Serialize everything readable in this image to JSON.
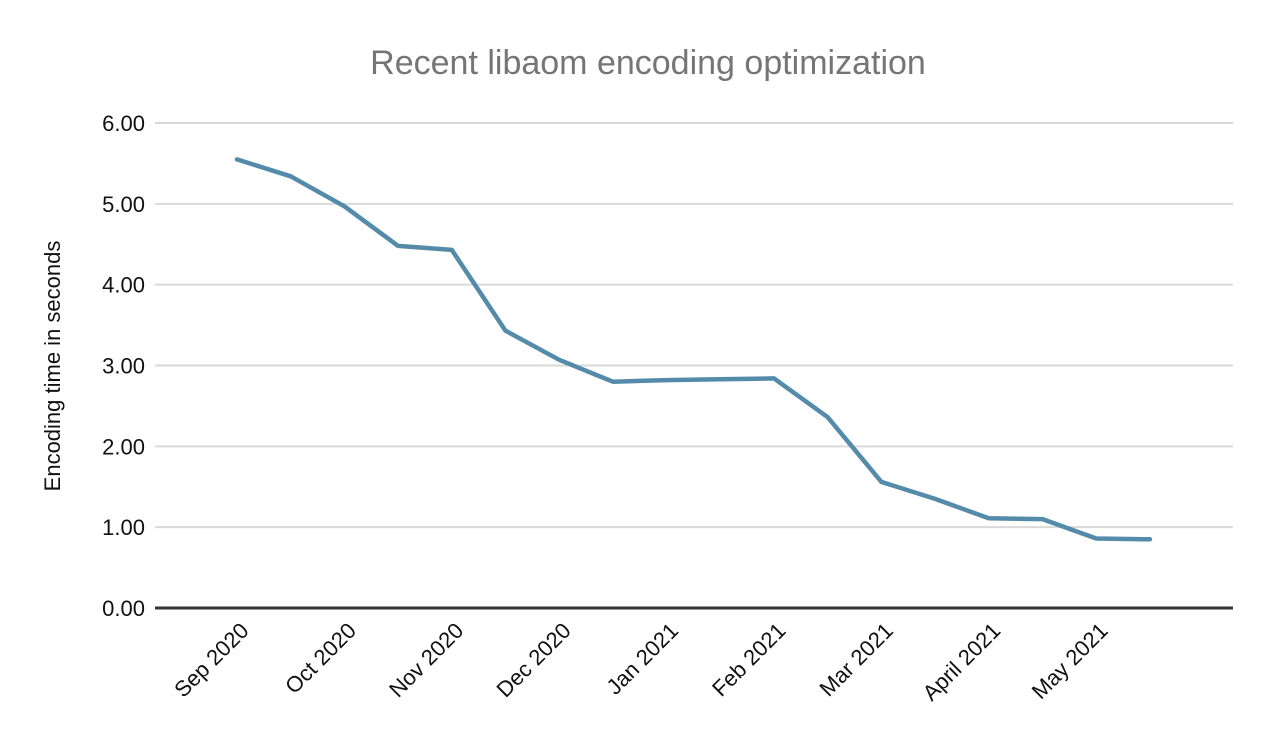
{
  "page": {
    "background": "#ffffff"
  },
  "chart_data": {
    "type": "line",
    "title": "Recent libaom encoding optimization",
    "xlabel": "",
    "ylabel": "Encoding time in seconds",
    "ylim": [
      0,
      6
    ],
    "grid": true,
    "legend_position": "none",
    "y_tick_values": [
      0,
      1,
      2,
      3,
      4,
      5,
      6
    ],
    "y_tick_labels": [
      "0.00",
      "1.00",
      "2.00",
      "3.00",
      "4.00",
      "5.00",
      "6.00"
    ],
    "categories": [
      "Sep 2020",
      "Oct 2020",
      "Nov 2020",
      "Dec 2020",
      "Jan 2021",
      "Feb 2021",
      "Mar 2021",
      "April 2021",
      "May 2021"
    ],
    "x_months": [
      0,
      0.5,
      1,
      1.5,
      2,
      2.5,
      3,
      3.5,
      4,
      4.5,
      5,
      5.5,
      6,
      6.5,
      7,
      7.5,
      8,
      8.5
    ],
    "series": [
      {
        "name": "Encoding time in seconds",
        "color": "#558baa",
        "values": [
          5.55,
          5.34,
          4.97,
          4.48,
          4.43,
          3.43,
          3.07,
          2.8,
          2.82,
          2.83,
          2.84,
          2.36,
          1.56,
          1.35,
          1.11,
          1.1,
          0.86,
          0.85
        ]
      }
    ],
    "colors": {
      "gridline": "#d9d9d9",
      "axis_line": "#333333",
      "tick_text": "#111111",
      "title_text": "#757575"
    }
  }
}
